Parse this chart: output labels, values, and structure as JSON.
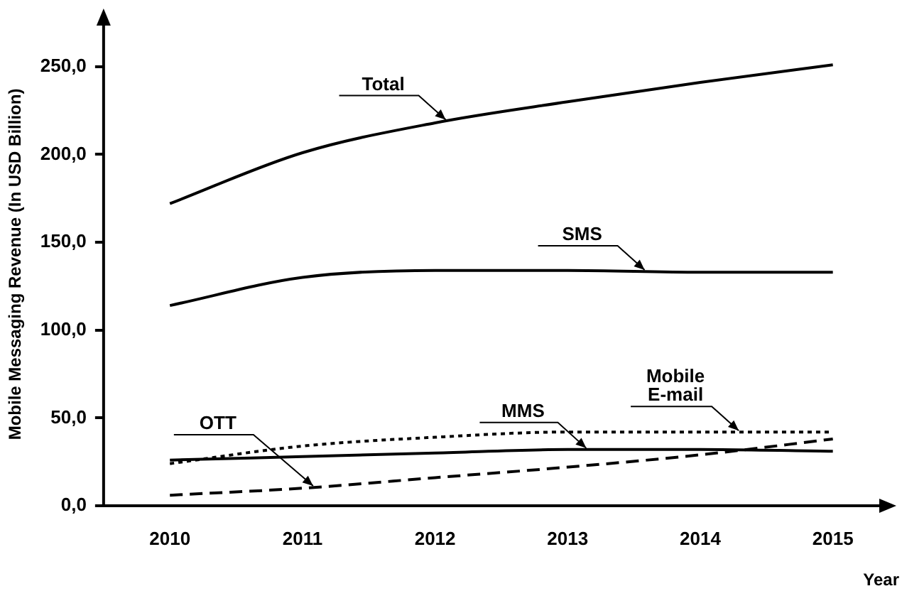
{
  "chart_data": {
    "type": "line",
    "xlabel": "Year",
    "ylabel": "Mobile Messaging Revenue (In USD Billion)",
    "categories": [
      "2010",
      "2011",
      "2012",
      "2013",
      "2014",
      "2015"
    ],
    "series": [
      {
        "name": "Total",
        "color": "#000000",
        "line_style": "solid",
        "values": [
          172,
          201,
          218,
          230,
          241,
          251
        ]
      },
      {
        "name": "SMS",
        "color": "#000000",
        "line_style": "solid",
        "values": [
          114,
          130,
          134,
          134,
          133,
          133
        ]
      },
      {
        "name": "MMS",
        "color": "#000000",
        "line_style": "solid",
        "values": [
          26,
          28,
          30,
          32,
          32,
          31
        ]
      },
      {
        "name": "Mobile E-mail",
        "color": "#000000",
        "line_style": "dotted",
        "values": [
          24,
          34,
          39,
          42,
          42,
          42
        ]
      },
      {
        "name": "OTT",
        "color": "#000000",
        "line_style": "dashed",
        "values": [
          6,
          10,
          16,
          22,
          29,
          38
        ]
      }
    ],
    "ylim": [
      0,
      275
    ],
    "yticks": [
      {
        "value": 0,
        "label": "0,0"
      },
      {
        "value": 50,
        "label": "50,0"
      },
      {
        "value": 100,
        "label": "100,0"
      },
      {
        "value": 150,
        "label": "150,0"
      },
      {
        "value": 200,
        "label": "200,0"
      },
      {
        "value": 250,
        "label": "250,0"
      }
    ],
    "grid": false,
    "legend": false,
    "marker": "none"
  }
}
